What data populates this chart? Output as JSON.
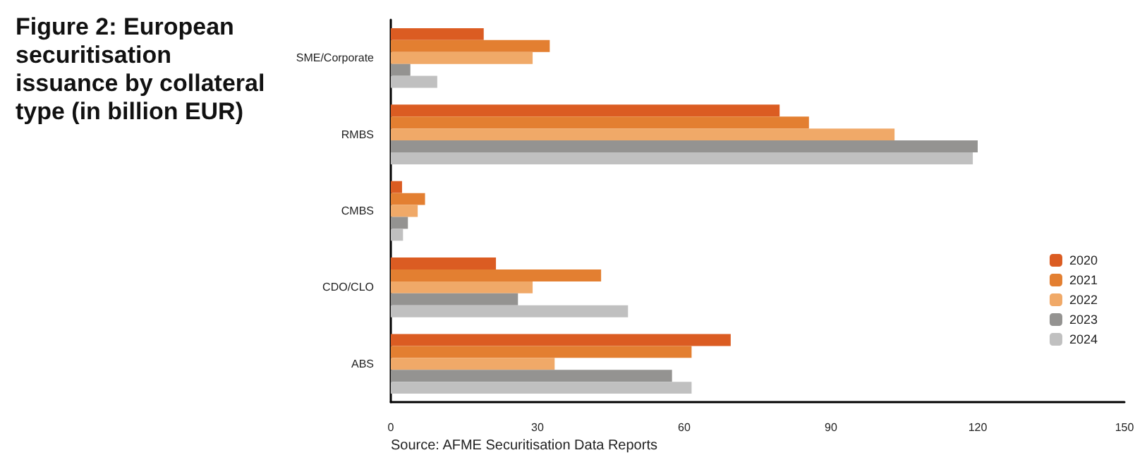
{
  "chart_data": {
    "type": "bar",
    "orientation": "horizontal",
    "title": "Figure 2: European securitisation issuance by collateral type (in billion EUR)",
    "categories": [
      "SME/Corporate",
      "RMBS",
      "CMBS",
      "CDO/CLO",
      "ABS"
    ],
    "series": [
      {
        "name": "2020",
        "color": "#db5c22",
        "values": [
          19,
          79.5,
          2.3,
          21.5,
          69.5
        ]
      },
      {
        "name": "2021",
        "color": "#e37f31",
        "values": [
          32.5,
          85.5,
          7,
          43,
          61.5
        ]
      },
      {
        "name": "2022",
        "color": "#f0a968",
        "values": [
          29,
          103,
          5.5,
          29,
          33.5
        ]
      },
      {
        "name": "2023",
        "color": "#949391",
        "values": [
          4,
          120,
          3.5,
          26,
          57.5
        ]
      },
      {
        "name": "2024",
        "color": "#c0c0c0",
        "values": [
          9.5,
          119,
          2.5,
          48.5,
          61.5
        ]
      }
    ],
    "xlim": [
      0,
      150
    ],
    "xticks": [
      0,
      30,
      60,
      90,
      120,
      150
    ],
    "grid": false,
    "legend": "right",
    "annotations": [
      "Source: AFME Securitisation Data Reports"
    ]
  }
}
